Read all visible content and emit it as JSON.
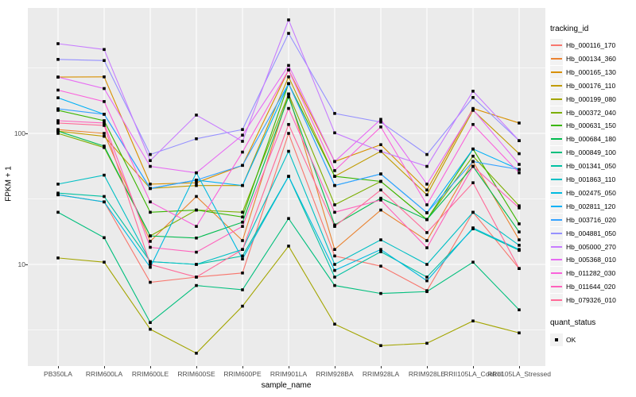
{
  "figure": {
    "background": "#FFFFFF",
    "panel_background": "#EBEBEB",
    "grid_color": "#FFFFFF",
    "tick_label_color": "#4D4D4D",
    "point_color": "#000000",
    "legend_key_background": "#F2F2F2"
  },
  "axes": {
    "y_title": "FPKM + 1",
    "x_title": "sample_name",
    "y_ticks": [
      "100",
      "10"
    ]
  },
  "legend": {
    "tracking_title": "tracking_id",
    "quant_title": "quant_status",
    "quant_ok_label": "OK"
  },
  "chart_data": {
    "type": "line",
    "title": "",
    "xlabel": "sample_name",
    "ylabel": "FPKM + 1",
    "y_scale": "log10",
    "ylim": [
      2,
      900
    ],
    "y_major_ticks": [
      100,
      10
    ],
    "y_minor_gridlines": [
      316,
      31.6,
      3.16
    ],
    "grid": true,
    "legend_position": "right",
    "point_shape": "filled-square",
    "quant_status": "OK",
    "categories": [
      "PB350LA",
      "RRIM600LA",
      "RRIM600LE",
      "RRIM600SE",
      "RRIM600PE",
      "RRIM901LA",
      "RRIM928BA",
      "RRIM928LA",
      "RRIM928LE",
      "RRII105LA_Control",
      "RRII105LA_Stressed"
    ],
    "series": [
      {
        "name": "Hb_000116_170",
        "color": "#F8766D",
        "values": [
          34,
          30,
          7.3,
          8,
          8.6,
          100,
          11.6,
          9.7,
          6.3,
          25,
          9.3
        ]
      },
      {
        "name": "Hb_000134_360",
        "color": "#EA8331",
        "values": [
          107,
          100,
          15,
          33,
          15.2,
          200,
          13,
          26,
          15.2,
          61,
          15.4
        ]
      },
      {
        "name": "Hb_000165_130",
        "color": "#D89000",
        "values": [
          269,
          270,
          41,
          42,
          57,
          305,
          61,
          82,
          37,
          155,
          120
        ]
      },
      {
        "name": "Hb_000176_110",
        "color": "#C09B00",
        "values": [
          104,
          95,
          38,
          40,
          40,
          270,
          47,
          73,
          34,
          150,
          70
        ]
      },
      {
        "name": "Hb_000199_080",
        "color": "#A3A500",
        "values": [
          11.2,
          10.4,
          3.2,
          2.1,
          4.8,
          13.8,
          3.5,
          2.4,
          2.5,
          3.7,
          3.0
        ]
      },
      {
        "name": "Hb_000372_040",
        "color": "#7CAE00",
        "values": [
          100,
          78,
          16.5,
          26,
          25,
          200,
          28.5,
          43,
          22,
          67,
          28
        ]
      },
      {
        "name": "Hb_000631_150",
        "color": "#39B600",
        "values": [
          150,
          125,
          25,
          26,
          23,
          240,
          47,
          43,
          22,
          76,
          20.4
        ]
      },
      {
        "name": "Hb_000684_180",
        "color": "#00BB4E",
        "values": [
          104,
          80,
          16.5,
          15.9,
          21,
          190,
          20,
          32,
          22,
          56,
          17.7
        ]
      },
      {
        "name": "Hb_000849_100",
        "color": "#00BF7D",
        "values": [
          25,
          16,
          3.6,
          6.9,
          6.4,
          22.4,
          6.9,
          6.0,
          6.2,
          10.4,
          4.5
        ]
      },
      {
        "name": "Hb_001341_050",
        "color": "#00C1A3",
        "values": [
          35,
          33,
          10.5,
          10,
          11.6,
          47,
          8.0,
          12.5,
          8.0,
          18.7,
          12.8
        ]
      },
      {
        "name": "Hb_001863_110",
        "color": "#00BFC4",
        "values": [
          41,
          48,
          10.5,
          10,
          13,
          73,
          10,
          15.4,
          10,
          25,
          14
        ]
      },
      {
        "name": "Hb_002475_050",
        "color": "#00BAE0",
        "values": [
          34,
          30,
          9.5,
          50,
          11,
          47,
          9.0,
          13,
          7.5,
          19,
          13
        ]
      },
      {
        "name": "Hb_002811_120",
        "color": "#00B0F6",
        "values": [
          187,
          140,
          38,
          44,
          40,
          240,
          40,
          49,
          24.8,
          76,
          53
        ]
      },
      {
        "name": "Hb_003716_020",
        "color": "#35A2FF",
        "values": [
          154,
          140,
          38,
          44,
          57,
          240,
          40,
          49,
          24.8,
          61,
          53
        ]
      },
      {
        "name": "Hb_004881_050",
        "color": "#9590FF",
        "values": [
          367,
          360,
          69,
          91,
          107,
          580,
          142,
          122,
          69,
          188,
          88
        ]
      },
      {
        "name": "Hb_005000_270",
        "color": "#C77CFF",
        "values": [
          484,
          437,
          62,
          138,
          87,
          735,
          101,
          73,
          56,
          210,
          88
        ]
      },
      {
        "name": "Hb_005368_010",
        "color": "#E76BF3",
        "values": [
          269,
          220,
          56,
          50,
          97,
          330,
          61,
          128,
          41,
          152,
          58
        ]
      },
      {
        "name": "Hb_011282_030",
        "color": "#FA62DB",
        "values": [
          214,
          175,
          30,
          19.5,
          72,
          305,
          52,
          112,
          28.5,
          117,
          50
        ]
      },
      {
        "name": "Hb_011644_020",
        "color": "#FF62BC",
        "values": [
          125,
          120,
          13.5,
          12.4,
          19.5,
          155,
          25,
          31,
          13.4,
          56,
          27
        ]
      },
      {
        "name": "Hb_079326_010",
        "color": "#FF6A98",
        "values": [
          120,
          115,
          10,
          8,
          13,
          117,
          19.5,
          37,
          17.5,
          42,
          9.3
        ]
      }
    ]
  }
}
